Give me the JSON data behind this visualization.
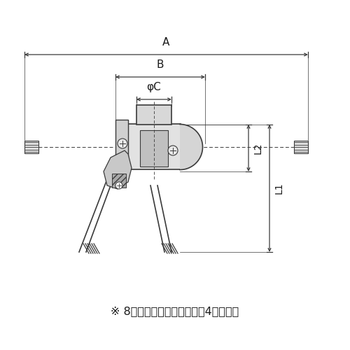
{
  "bg_color": "#ffffff",
  "lc": "#3a3a3a",
  "tc": "#1a1a1a",
  "footnote": "※ 8インチ品のカムアームは4本です。",
  "label_A": "A",
  "label_B": "B",
  "label_phiC": "φC",
  "label_L1": "L1",
  "label_L2": "L2"
}
